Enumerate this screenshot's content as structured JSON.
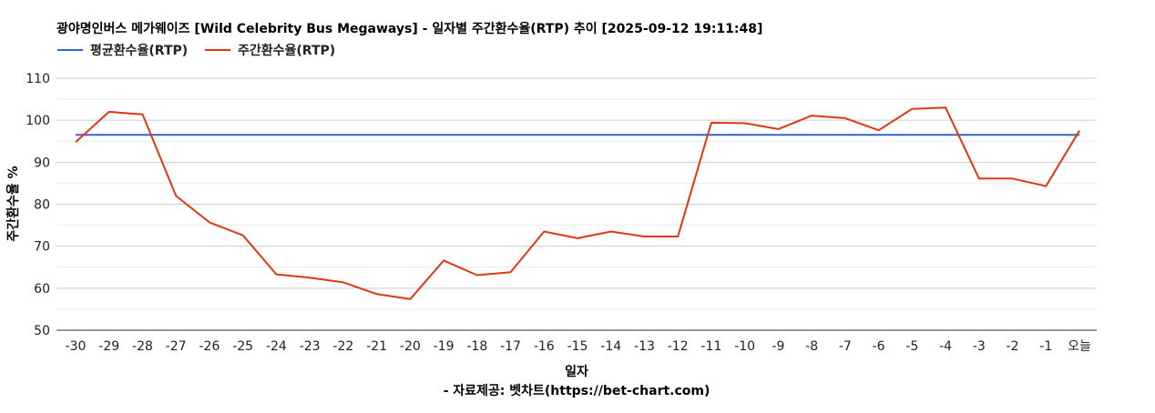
{
  "chart_data": {
    "type": "line",
    "title": "광야명인버스 메가웨이즈 [Wild Celebrity Bus Megaways] - 일자별 주간환수율(RTP) 추이 [2025-09-12 19:11:48]",
    "xlabel": "일자",
    "ylabel": "주간환수율 %",
    "source": "- 자료제공: 벳차트(https://bet-chart.com)",
    "categories": [
      "-30",
      "-29",
      "-28",
      "-27",
      "-26",
      "-25",
      "-24",
      "-23",
      "-22",
      "-21",
      "-20",
      "-19",
      "-18",
      "-17",
      "-16",
      "-15",
      "-14",
      "-13",
      "-12",
      "-11",
      "-10",
      "-9",
      "-8",
      "-7",
      "-6",
      "-5",
      "-4",
      "-3",
      "-2",
      "-1",
      "오늘"
    ],
    "ylim": [
      50,
      110
    ],
    "yticks": [
      50,
      60,
      70,
      80,
      90,
      100,
      110
    ],
    "grid": true,
    "legend_position": "top-left",
    "series": [
      {
        "name": "평균환수율(RTP)",
        "color": "#3366cc",
        "values": [
          96.5,
          96.5,
          96.5,
          96.5,
          96.5,
          96.5,
          96.5,
          96.5,
          96.5,
          96.5,
          96.5,
          96.5,
          96.5,
          96.5,
          96.5,
          96.5,
          96.5,
          96.5,
          96.5,
          96.5,
          96.5,
          96.5,
          96.5,
          96.5,
          96.5,
          96.5,
          96.5,
          96.5,
          96.5,
          96.5,
          96.5
        ]
      },
      {
        "name": "주간환수율(RTP)",
        "color": "#dc3912",
        "values": [
          94.8,
          102.0,
          101.4,
          82.0,
          75.7,
          72.6,
          63.3,
          62.5,
          61.4,
          58.6,
          57.4,
          66.6,
          63.1,
          63.8,
          73.5,
          71.9,
          73.5,
          72.3,
          72.3,
          99.4,
          99.3,
          97.9,
          101.1,
          100.5,
          97.6,
          102.7,
          103.0,
          86.1,
          86.1,
          84.3,
          97.5
        ]
      }
    ]
  }
}
